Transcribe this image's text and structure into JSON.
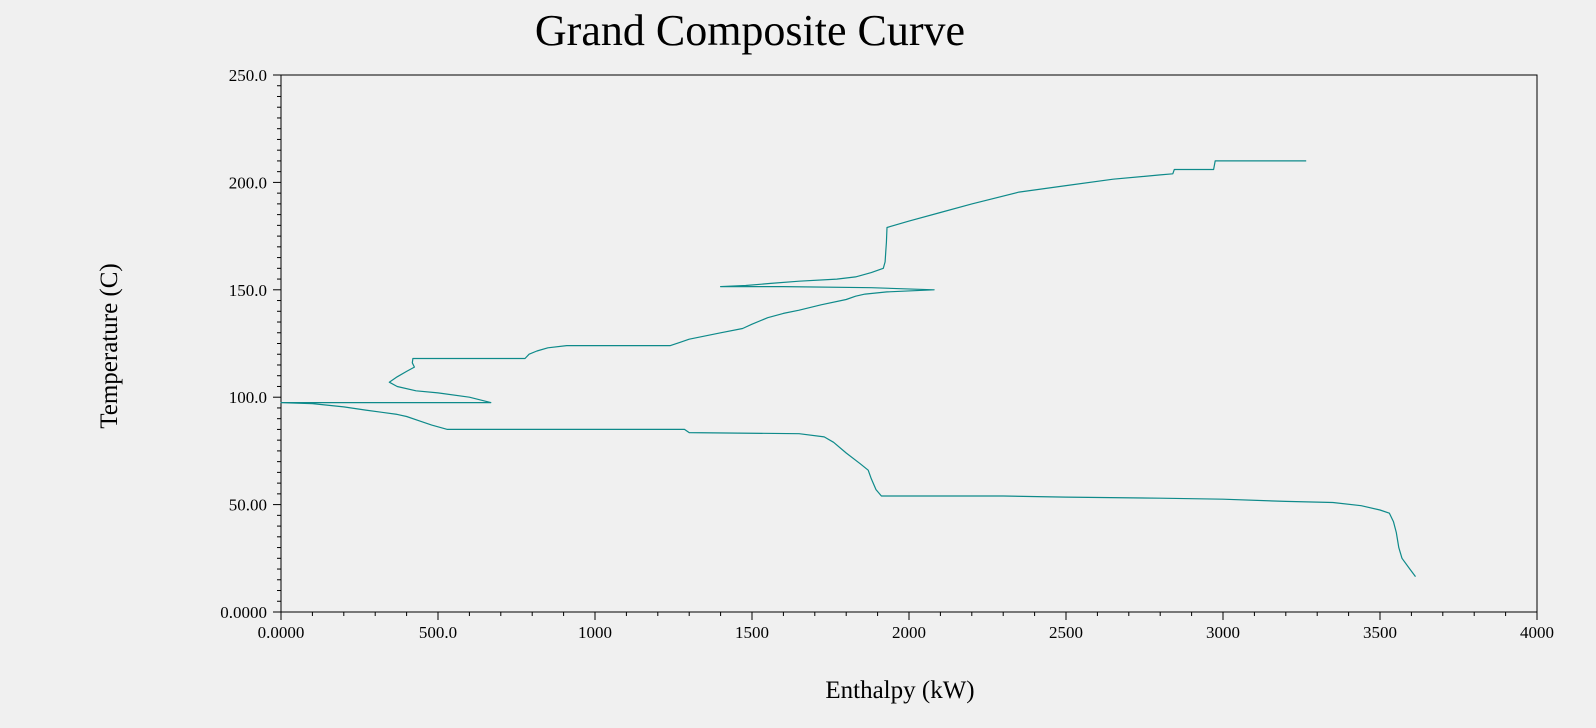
{
  "chart_data": {
    "type": "line",
    "title": "Grand Composite Curve",
    "xlabel": "Enthalpy (kW)",
    "ylabel": "Temperature (C)",
    "xlim": [
      0,
      4000
    ],
    "ylim": [
      0,
      250
    ],
    "x_ticks": [
      {
        "value": 0,
        "label": "0.0000"
      },
      {
        "value": 500,
        "label": "500.0"
      },
      {
        "value": 1000,
        "label": "1000"
      },
      {
        "value": 1500,
        "label": "1500"
      },
      {
        "value": 2000,
        "label": "2000"
      },
      {
        "value": 2500,
        "label": "2500"
      },
      {
        "value": 3000,
        "label": "3000"
      },
      {
        "value": 3500,
        "label": "3500"
      },
      {
        "value": 4000,
        "label": "4000"
      }
    ],
    "y_ticks": [
      {
        "value": 0,
        "label": "0.0000"
      },
      {
        "value": 50,
        "label": "50.00"
      },
      {
        "value": 100,
        "label": "100.0"
      },
      {
        "value": 150,
        "label": "150.0"
      },
      {
        "value": 200,
        "label": "200.0"
      },
      {
        "value": 250,
        "label": "250.0"
      }
    ],
    "grid": false,
    "series": [
      {
        "color": "#0e8a8a",
        "points": [
          [
            3613,
            16.5
          ],
          [
            3595,
            20
          ],
          [
            3570,
            25
          ],
          [
            3560,
            30
          ],
          [
            3552,
            37
          ],
          [
            3543,
            42
          ],
          [
            3530,
            46
          ],
          [
            3500,
            47.5
          ],
          [
            3440,
            49.5
          ],
          [
            3350,
            51
          ],
          [
            3200,
            51.5
          ],
          [
            3000,
            52.5
          ],
          [
            2800,
            53
          ],
          [
            2500,
            53.5
          ],
          [
            2300,
            54
          ],
          [
            2000,
            54
          ],
          [
            1912,
            54
          ],
          [
            1895,
            57
          ],
          [
            1880,
            62
          ],
          [
            1870,
            66
          ],
          [
            1845,
            69
          ],
          [
            1800,
            74
          ],
          [
            1760,
            79
          ],
          [
            1730,
            81.5
          ],
          [
            1650,
            83
          ],
          [
            1300,
            83.5
          ],
          [
            1285,
            85
          ],
          [
            1200,
            85
          ],
          [
            800,
            85
          ],
          [
            530,
            85
          ],
          [
            480,
            87
          ],
          [
            440,
            89
          ],
          [
            400,
            91
          ],
          [
            370,
            92
          ],
          [
            270,
            94
          ],
          [
            200,
            95.5
          ],
          [
            100,
            97
          ],
          [
            0,
            97.5
          ],
          [
            668,
            97.5
          ],
          [
            600,
            100
          ],
          [
            500,
            102
          ],
          [
            430,
            103
          ],
          [
            370,
            105
          ],
          [
            345,
            107
          ],
          [
            370,
            109.5
          ],
          [
            400,
            112
          ],
          [
            425,
            114
          ],
          [
            418,
            116
          ],
          [
            420,
            118
          ],
          [
            777,
            118
          ],
          [
            790,
            120
          ],
          [
            815,
            121.5
          ],
          [
            850,
            123
          ],
          [
            910,
            124
          ],
          [
            1240,
            124
          ],
          [
            1270,
            125.5
          ],
          [
            1300,
            127
          ],
          [
            1400,
            130
          ],
          [
            1470,
            132
          ],
          [
            1500,
            134
          ],
          [
            1550,
            137
          ],
          [
            1600,
            139
          ],
          [
            1650,
            140.5
          ],
          [
            1720,
            143
          ],
          [
            1800,
            145.5
          ],
          [
            1830,
            147
          ],
          [
            1860,
            148
          ],
          [
            1930,
            149
          ],
          [
            2080,
            150
          ],
          [
            1880,
            151
          ],
          [
            1600,
            151.5
          ],
          [
            1400,
            151.5
          ],
          [
            1480,
            152
          ],
          [
            1560,
            153
          ],
          [
            1650,
            154
          ],
          [
            1770,
            155
          ],
          [
            1830,
            156
          ],
          [
            1880,
            158
          ],
          [
            1918,
            160
          ],
          [
            1924,
            163
          ],
          [
            1926,
            168
          ],
          [
            1928,
            172
          ],
          [
            1930,
            179
          ],
          [
            2000,
            182
          ],
          [
            2100,
            186
          ],
          [
            2200,
            190
          ],
          [
            2350,
            195.5
          ],
          [
            2500,
            198.5
          ],
          [
            2650,
            201.5
          ],
          [
            2800,
            203.5
          ],
          [
            2840,
            204
          ],
          [
            2845,
            206
          ],
          [
            2970,
            206
          ],
          [
            2975,
            210
          ],
          [
            3265,
            210
          ]
        ]
      }
    ]
  }
}
